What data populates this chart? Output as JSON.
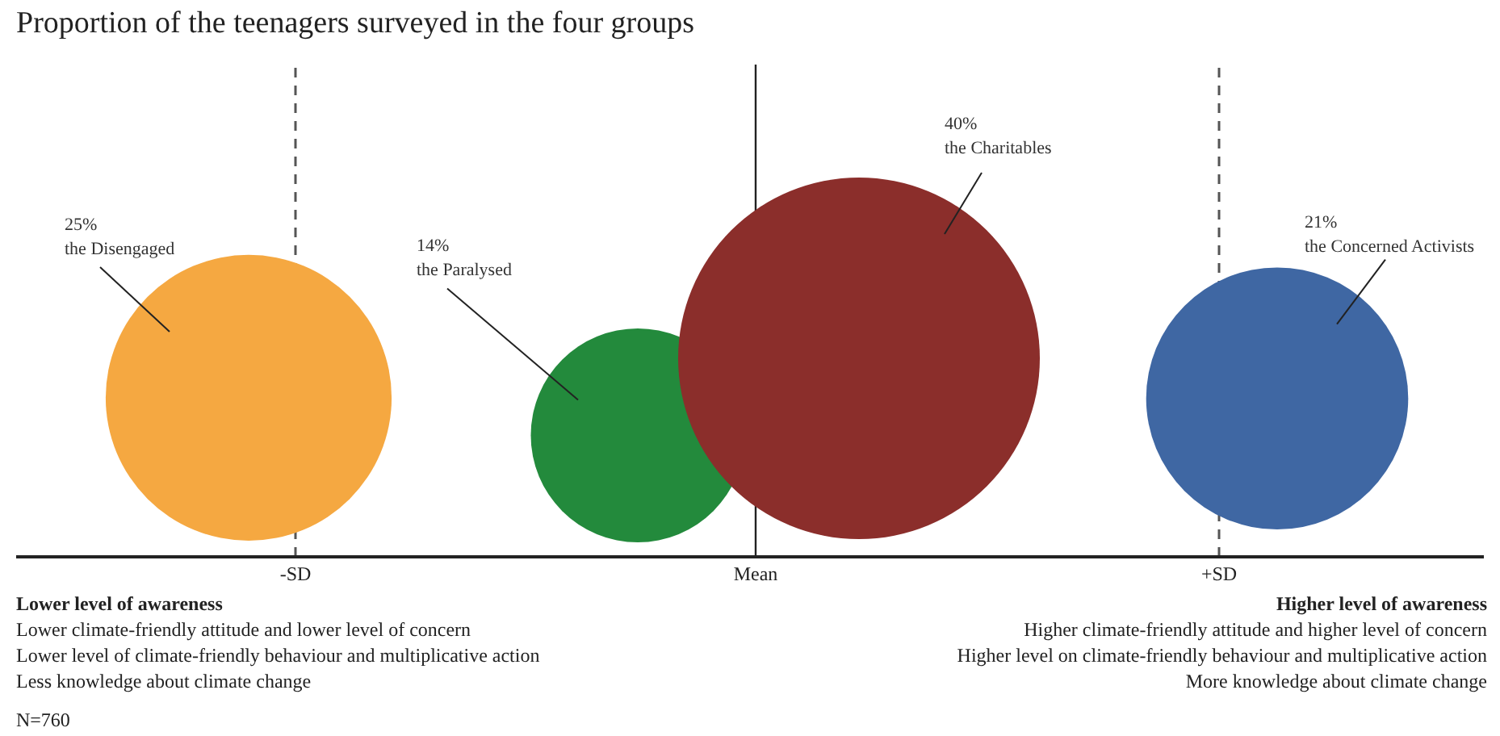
{
  "chart_data": {
    "type": "other",
    "title": "Proportion of the teenagers surveyed in the four groups",
    "categories": [
      "the Disengaged",
      "the Paralysed",
      "the Charitables",
      "the Concerned Activists"
    ],
    "values": [
      25,
      14,
      40,
      21
    ],
    "value_labels": [
      "25%",
      "14%",
      "40%",
      "21%"
    ],
    "colors": [
      "#f5a841",
      "#238a3c",
      "#8b2e2b",
      "#3f67a3"
    ],
    "annotations": [
      "-SD",
      "Mean",
      "+SD",
      "Lower level of awareness\nLower climate-friendly attitude and lower level of concern\nLower level of climate-friendly behaviour and multiplicative action\nLess knowledge about climate change",
      "Higher level of awareness\nHigher climate-friendly attitude and higher level of concern\nHigher level on climate-friendly behaviour and multiplicative action\nMore knowledge about climate change",
      "N=760"
    ]
  }
}
